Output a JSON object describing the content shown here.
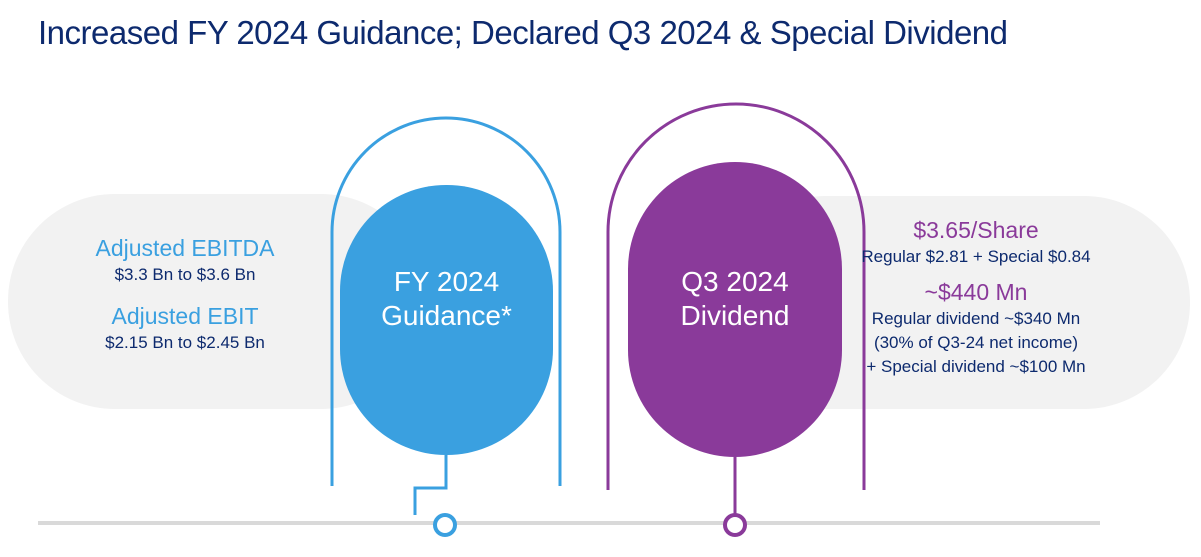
{
  "title": "Increased FY 2024 Guidance; Declared Q3 2024 & Special Dividend",
  "left_panel": {
    "item1_heading": "Adjusted EBITDA",
    "item1_value": "$3.3 Bn to $3.6 Bn",
    "item2_heading": "Adjusted EBIT",
    "item2_value": "$2.15 Bn to $2.45 Bn"
  },
  "center_left": {
    "line1": "FY 2024",
    "line2": "Guidance*"
  },
  "center_right": {
    "line1": "Q3 2024",
    "line2": "Dividend"
  },
  "right_panel": {
    "per_share_heading": "$3.65/Share",
    "per_share_detail": "Regular $2.81 + Special $0.84",
    "total_heading": "~$440 Mn",
    "total_line1": "Regular dividend ~$340 Mn",
    "total_line2": "(30% of Q3-24 net income)",
    "total_line3": "+ Special dividend ~$100 Mn"
  },
  "colors": {
    "navy": "#0d2a6e",
    "blue": "#3aa0e0",
    "purple": "#8a3a9a",
    "panel_gray": "#f2f2f2",
    "line_gray": "#d9d9d9"
  }
}
